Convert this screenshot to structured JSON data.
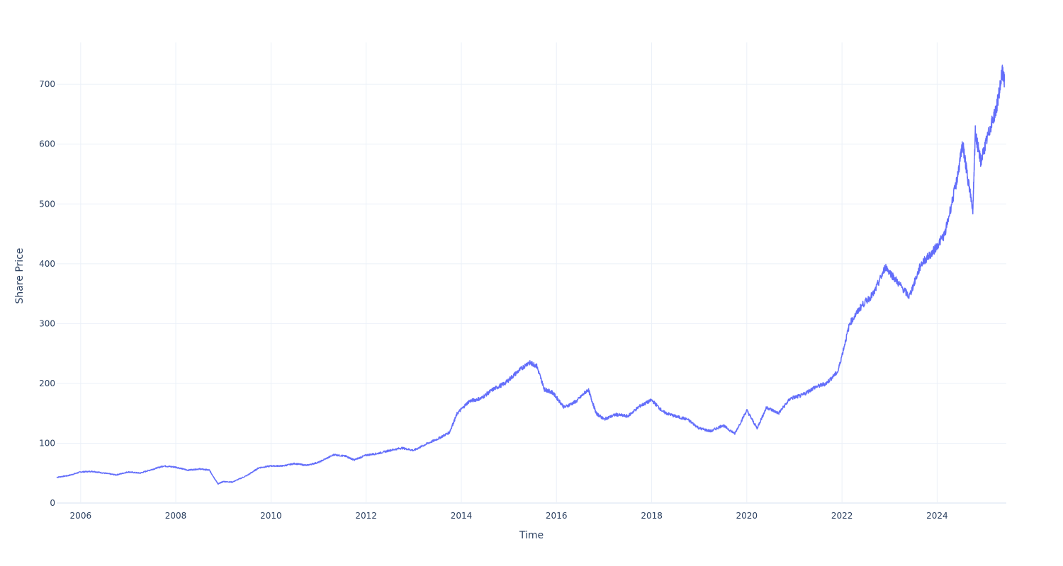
{
  "chart_data": {
    "type": "line",
    "title": "",
    "xlabel": "Time",
    "ylabel": "Share Price",
    "xlim": [
      "2005-07-01",
      "2025-06-15"
    ],
    "ylim": [
      0,
      770
    ],
    "x_ticks": [
      "2006",
      "2008",
      "2010",
      "2012",
      "2014",
      "2016",
      "2018",
      "2020",
      "2022",
      "2024"
    ],
    "y_ticks": [
      0,
      100,
      200,
      300,
      400,
      500,
      600,
      700
    ],
    "grid": true,
    "legend": "none",
    "line_color": "#636efa",
    "series": [
      {
        "x": [
          "2005-07-01",
          "2005-10-01",
          "2006-01-01",
          "2006-04-01",
          "2006-07-01",
          "2006-10-01",
          "2007-01-01",
          "2007-04-01",
          "2007-07-01",
          "2007-10-01",
          "2008-01-01",
          "2008-04-01",
          "2008-07-01",
          "2008-09-15",
          "2008-11-20",
          "2009-01-01",
          "2009-03-10",
          "2009-07-01",
          "2009-10-01",
          "2010-01-01",
          "2010-04-01",
          "2010-07-01",
          "2010-10-01",
          "2011-01-01",
          "2011-05-01",
          "2011-08-01",
          "2011-10-01",
          "2012-01-01",
          "2012-04-01",
          "2012-07-01",
          "2012-10-01",
          "2013-01-01",
          "2013-04-01",
          "2013-07-01",
          "2013-10-01",
          "2013-12-01",
          "2014-03-01",
          "2014-06-01",
          "2014-09-01",
          "2014-12-01",
          "2015-03-01",
          "2015-06-01",
          "2015-08-01",
          "2015-10-01",
          "2015-12-01",
          "2016-03-01",
          "2016-06-01",
          "2016-09-01",
          "2016-11-01",
          "2017-01-01",
          "2017-04-01",
          "2017-07-01",
          "2017-10-01",
          "2018-01-01",
          "2018-04-01",
          "2018-07-01",
          "2018-10-01",
          "2019-01-01",
          "2019-04-01",
          "2019-07-01",
          "2019-10-01",
          "2020-01-01",
          "2020-03-20",
          "2020-06-01",
          "2020-09-01",
          "2020-12-01",
          "2021-03-01",
          "2021-06-01",
          "2021-09-01",
          "2021-12-01",
          "2022-03-01",
          "2022-06-01",
          "2022-09-01",
          "2022-12-01",
          "2023-03-01",
          "2023-06-01",
          "2023-09-01",
          "2023-12-01",
          "2024-03-01",
          "2024-06-01",
          "2024-07-15",
          "2024-08-15",
          "2024-10-01",
          "2024-10-20",
          "2024-12-01",
          "2025-02-01",
          "2025-04-01",
          "2025-05-15",
          "2025-06-01"
        ],
        "y": [
          43,
          46,
          52,
          53,
          50,
          47,
          52,
          50,
          56,
          62,
          60,
          55,
          57,
          55,
          32,
          36,
          35,
          46,
          59,
          62,
          62,
          66,
          63,
          68,
          81,
          78,
          72,
          80,
          83,
          88,
          92,
          88,
          98,
          107,
          118,
          150,
          170,
          175,
          190,
          200,
          218,
          235,
          230,
          190,
          185,
          160,
          170,
          190,
          150,
          140,
          148,
          145,
          162,
          172,
          152,
          145,
          140,
          125,
          120,
          130,
          116,
          155,
          125,
          160,
          150,
          175,
          180,
          193,
          200,
          220,
          300,
          330,
          350,
          395,
          370,
          345,
          400,
          420,
          450,
          540,
          600,
          555,
          490,
          620,
          570,
          620,
          660,
          720,
          705
        ]
      }
    ]
  }
}
